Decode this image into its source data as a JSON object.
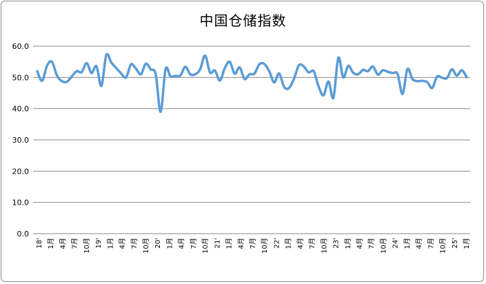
{
  "chart_data": {
    "type": "line",
    "title": "中国仓储指数",
    "xlabel": "",
    "ylabel": "",
    "ylim": [
      0,
      60
    ],
    "yticks": [
      "0.0",
      "10.0",
      "20.0",
      "30.0",
      "40.0",
      "50.0",
      "60.0"
    ],
    "grid": true,
    "legend": "none",
    "line_color": "#5b9bd5",
    "x_tick_labels": [
      "18'",
      "1月",
      "4月",
      "7月",
      "10月",
      "19'",
      "1月",
      "4月",
      "7月",
      "10月",
      "20'",
      "1月",
      "4月",
      "7月",
      "10月",
      "21'",
      "1月",
      "4月",
      "7月",
      "10月",
      "22'",
      "1月",
      "4月",
      "7月",
      "10月",
      "23'",
      "1月",
      "4月",
      "7月",
      "10月",
      "24'",
      "1月",
      "4月",
      "7月",
      "10月",
      "25'",
      "1月"
    ],
    "series": [
      {
        "values": [
          52.0,
          48.9,
          53.8,
          55.0,
          50.6,
          48.8,
          48.6,
          50.3,
          52.0,
          51.7,
          54.6,
          51.4,
          53.6,
          47.3,
          57.2,
          54.8,
          53.0,
          51.3,
          50.0,
          54.2,
          52.8,
          51.0,
          54.4,
          52.6,
          51.0,
          39.0,
          52.7,
          50.3,
          50.5,
          50.6,
          53.4,
          51.0,
          51.0,
          52.6,
          57.0,
          51.6,
          52.2,
          49.0,
          53.0,
          55.0,
          51.2,
          53.2,
          49.5,
          51.0,
          51.2,
          54.2,
          54.3,
          52.0,
          48.4,
          51.3,
          47.0,
          46.6,
          49.5,
          53.9,
          53.5,
          51.6,
          52.0,
          47.1,
          44.3,
          48.7,
          43.5,
          56.3,
          50.0,
          53.7,
          51.5,
          51.0,
          52.4,
          52.0,
          53.5,
          50.9,
          52.3,
          51.8,
          51.4,
          51.1,
          44.7,
          52.7,
          49.5,
          48.8,
          48.9,
          48.5,
          46.6,
          50.3,
          49.9,
          49.8,
          52.6,
          50.6,
          52.3,
          50.1
        ]
      }
    ]
  }
}
